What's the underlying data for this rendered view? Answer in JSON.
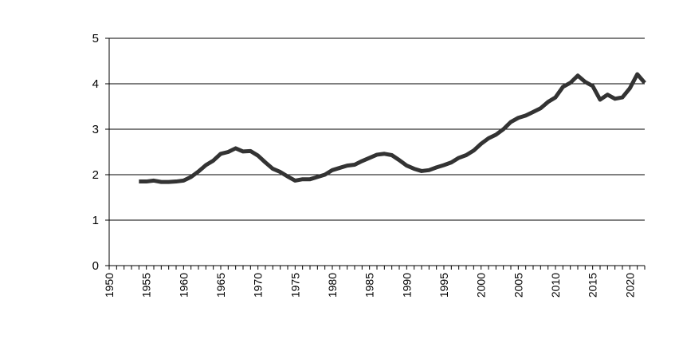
{
  "chart_data": {
    "type": "line",
    "title": "",
    "xlabel": "",
    "ylabel": "",
    "xlim": [
      1950,
      2022
    ],
    "ylim": [
      0,
      5
    ],
    "x_ticks": [
      1950,
      1955,
      1960,
      1965,
      1970,
      1975,
      1980,
      1985,
      1990,
      1995,
      2000,
      2005,
      2010,
      2015,
      2020
    ],
    "y_ticks": [
      0,
      1,
      2,
      3,
      4,
      5
    ],
    "grid": "horizontal",
    "legend": "none",
    "series": [
      {
        "color": "#333333",
        "x": [
          1954,
          1955,
          1956,
          1957,
          1958,
          1959,
          1960,
          1961,
          1962,
          1963,
          1964,
          1965,
          1966,
          1967,
          1968,
          1969,
          1970,
          1971,
          1972,
          1973,
          1974,
          1975,
          1976,
          1977,
          1978,
          1979,
          1980,
          1981,
          1982,
          1983,
          1984,
          1985,
          1986,
          1987,
          1988,
          1989,
          1990,
          1991,
          1992,
          1993,
          1994,
          1995,
          1996,
          1997,
          1998,
          1999,
          2000,
          2001,
          2002,
          2003,
          2004,
          2005,
          2006,
          2007,
          2008,
          2009,
          2010,
          2011,
          2012,
          2013,
          2014,
          2015,
          2016,
          2017,
          2018,
          2019,
          2020,
          2021,
          2022
        ],
        "values": [
          1.85,
          1.85,
          1.87,
          1.84,
          1.84,
          1.85,
          1.87,
          1.95,
          2.07,
          2.21,
          2.31,
          2.46,
          2.5,
          2.58,
          2.51,
          2.52,
          2.42,
          2.27,
          2.13,
          2.06,
          1.96,
          1.87,
          1.9,
          1.9,
          1.95,
          2.0,
          2.1,
          2.15,
          2.2,
          2.22,
          2.3,
          2.37,
          2.44,
          2.46,
          2.43,
          2.32,
          2.2,
          2.13,
          2.08,
          2.1,
          2.16,
          2.21,
          2.27,
          2.37,
          2.43,
          2.53,
          2.68,
          2.8,
          2.88,
          3.0,
          3.16,
          3.25,
          3.3,
          3.38,
          3.46,
          3.6,
          3.7,
          3.93,
          4.02,
          4.18,
          4.04,
          3.95,
          3.65,
          3.76,
          3.67,
          3.7,
          3.9,
          4.21,
          4.02
        ]
      }
    ]
  }
}
